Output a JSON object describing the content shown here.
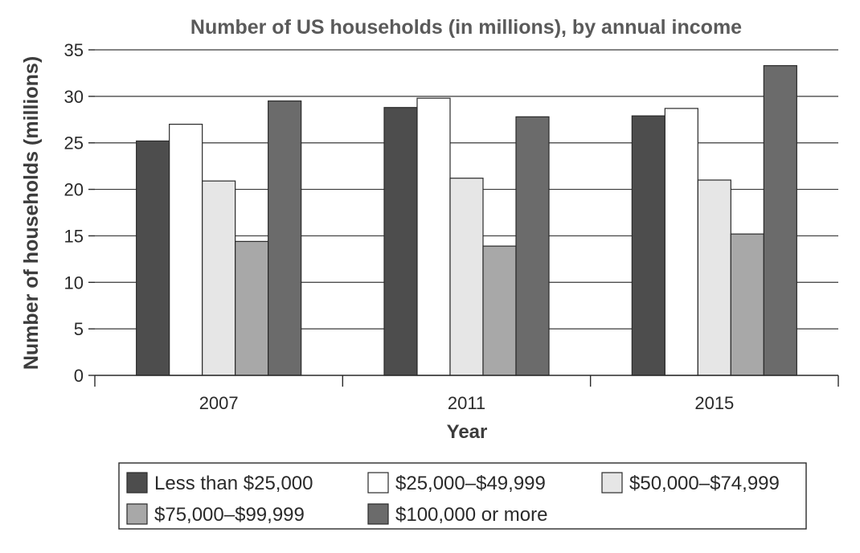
{
  "chart_data": {
    "type": "bar",
    "title": "Number of US households (in millions), by annual income",
    "xlabel": "Year",
    "ylabel": "Number of households (millions)",
    "categories": [
      "2007",
      "2011",
      "2015"
    ],
    "ylim": [
      0,
      35
    ],
    "yticks": [
      0,
      5,
      10,
      15,
      20,
      25,
      30,
      35
    ],
    "grid": true,
    "legend_position": "bottom",
    "series": [
      {
        "name": "Less than $25,000",
        "color": "#4d4d4d",
        "values": [
          25.2,
          28.8,
          27.9
        ]
      },
      {
        "name": "$25,000–$49,999",
        "color": "#ffffff",
        "values": [
          27.0,
          29.8,
          28.7
        ]
      },
      {
        "name": "$50,000–$74,999",
        "color": "#e6e6e6",
        "values": [
          20.9,
          21.2,
          21.0
        ]
      },
      {
        "name": "$75,000–$99,999",
        "color": "#a8a8a8",
        "values": [
          14.4,
          13.9,
          15.2
        ]
      },
      {
        "name": "$100,000 or more",
        "color": "#6b6b6b",
        "values": [
          29.5,
          27.8,
          33.3
        ]
      }
    ]
  }
}
